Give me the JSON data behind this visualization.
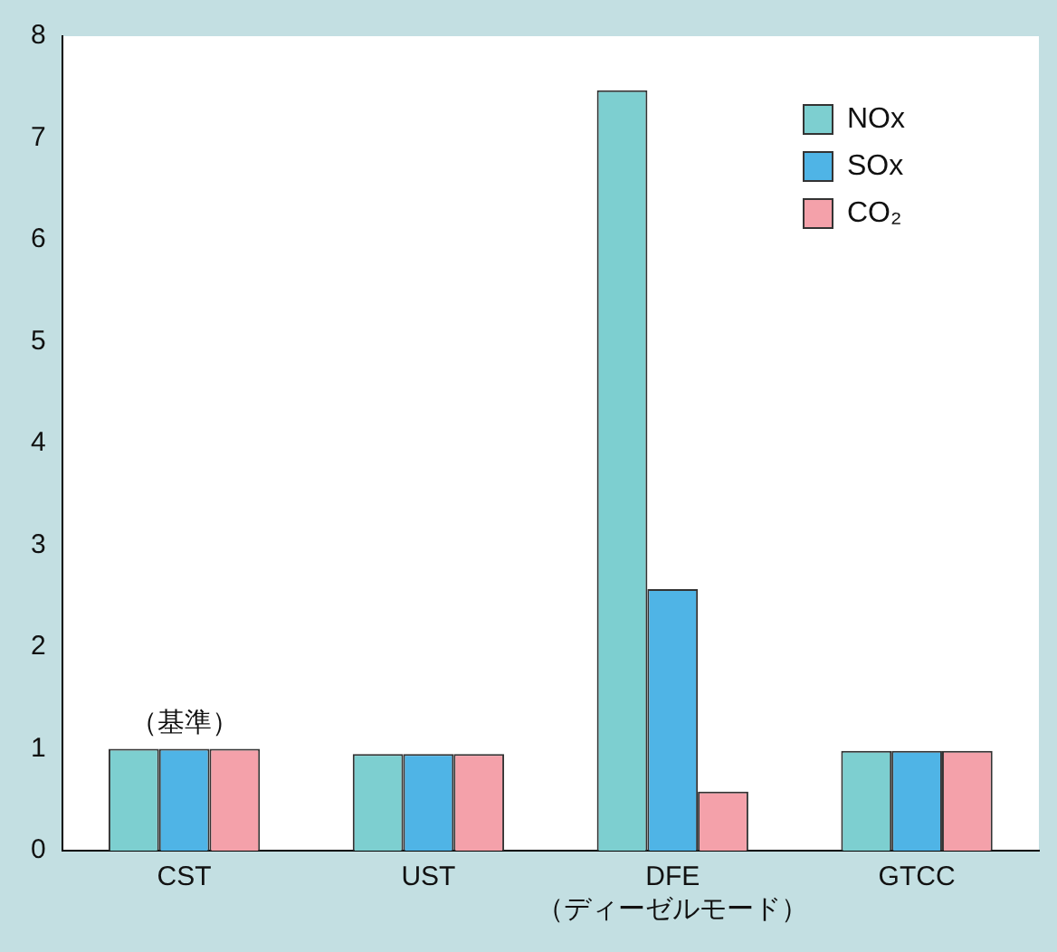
{
  "chart_data": {
    "type": "bar",
    "categories": [
      "CST",
      "UST",
      "DFE\n（ディーゼルモード）",
      "GTCC"
    ],
    "series": [
      {
        "name": "NOx",
        "color": "#7dcfd0",
        "values": [
          1,
          0.95,
          7.47,
          0.98
        ]
      },
      {
        "name": "SOx",
        "color": "#4fb4e6",
        "values": [
          1,
          0.95,
          2.57,
          0.98
        ]
      },
      {
        "name": "CO₂",
        "color": "#f4a1aa",
        "values": [
          1,
          0.95,
          0.58,
          0.98
        ]
      }
    ],
    "ylim": [
      0,
      8
    ],
    "yticks": [
      0,
      1,
      2,
      3,
      4,
      5,
      6,
      7,
      8
    ],
    "grid": false,
    "legend": "top right",
    "annotations": [
      {
        "text": "（基準）",
        "x": "CST",
        "y": 1
      }
    ]
  }
}
